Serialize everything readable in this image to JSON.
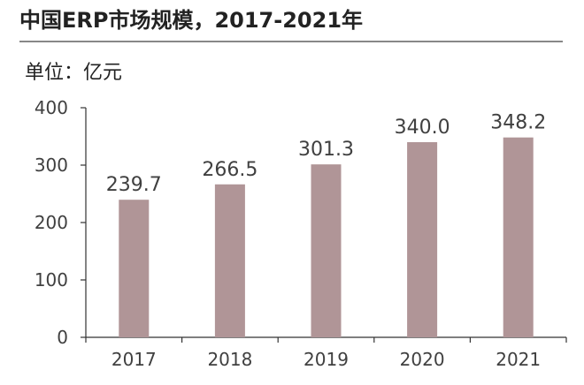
{
  "title": "中国ERP市场规模，2017-2021年",
  "unit_label": "单位：亿元",
  "colors": {
    "bar": "#b09597",
    "axis": "#333333",
    "text": "#404040",
    "title_rule": "#888888"
  },
  "chart_data": {
    "type": "bar",
    "title": "中国ERP市场规模，2017-2021年",
    "ylabel": "单位：亿元",
    "xlabel": "",
    "categories": [
      "2017",
      "2018",
      "2019",
      "2020",
      "2021"
    ],
    "values": [
      239.7,
      266.5,
      301.3,
      340.0,
      348.2
    ],
    "data_labels": [
      "239.7",
      "266.5",
      "301.3",
      "340.0",
      "348.2"
    ],
    "ylim": [
      0,
      400
    ],
    "yticks": [
      0,
      100,
      200,
      300,
      400
    ],
    "ytick_labels": [
      "0",
      "100",
      "200",
      "300",
      "400"
    ],
    "grid": false,
    "legend": "none"
  }
}
